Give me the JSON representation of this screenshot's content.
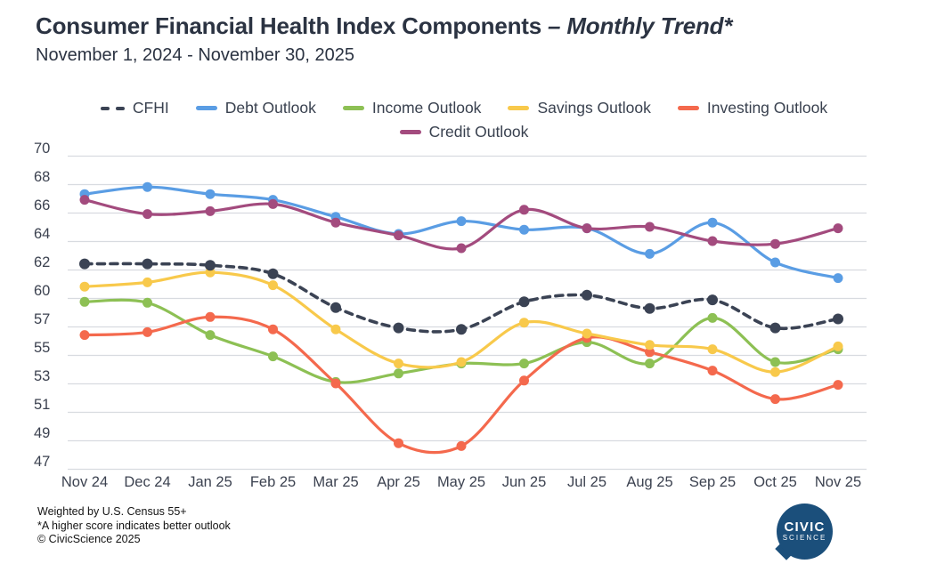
{
  "header": {
    "title_main": "Consumer Financial Health Index Components",
    "title_em": "– Monthly Trend*",
    "subtitle": "November 1, 2024 - November 30, 2025"
  },
  "legend": {
    "rows": [
      [
        "CFHI",
        "Debt Outlook",
        "Income Outlook",
        "Savings Outlook",
        "Investing Outlook"
      ],
      [
        "Credit Outlook"
      ]
    ]
  },
  "chart_data": {
    "type": "line",
    "title": "Consumer Financial Health Index Components – Monthly Trend*",
    "subtitle": "November 1, 2024 - November 30, 2025",
    "grid": "horizontal",
    "legend_position": "top-center",
    "x_categories": [
      "Nov 24",
      "Dec 24",
      "Jan 25",
      "Feb 25",
      "Mar 25",
      "Apr 25",
      "May 25",
      "Jun 25",
      "Jul 25",
      "Aug 25",
      "Sep 25",
      "Oct 25",
      "Nov 25"
    ],
    "y_tick_labels": [
      "70",
      "68",
      "66",
      "64",
      "62",
      "60",
      "57",
      "55",
      "53",
      "51",
      "49",
      "47"
    ],
    "y_axis_note": "ticks listed top to bottom, evenly spaced on screen despite non-uniform numeric steps",
    "series": [
      {
        "name": "CFHI",
        "color": "#3b4354",
        "style": "dashed",
        "values": [
          62.4,
          62.4,
          62.3,
          61.7,
          59.0,
          56.9,
          56.8,
          59.6,
          60.2,
          58.9,
          59.8,
          56.9,
          57.8
        ]
      },
      {
        "name": "Debt Outlook",
        "color": "#5a9de4",
        "style": "solid",
        "values": [
          67.3,
          67.8,
          67.3,
          66.9,
          65.7,
          64.5,
          65.4,
          64.8,
          64.9,
          63.1,
          65.3,
          62.5,
          61.4
        ]
      },
      {
        "name": "Income Outlook",
        "color": "#8dc054",
        "style": "solid",
        "values": [
          59.6,
          59.5,
          56.4,
          54.9,
          53.1,
          53.7,
          54.4,
          54.4,
          55.9,
          54.4,
          57.9,
          54.5,
          55.4
        ]
      },
      {
        "name": "Savings Outlook",
        "color": "#f8c94b",
        "style": "solid",
        "values": [
          60.8,
          61.1,
          61.8,
          60.9,
          56.8,
          54.4,
          54.5,
          57.4,
          56.5,
          55.7,
          55.4,
          53.8,
          55.6
        ]
      },
      {
        "name": "Investing Outlook",
        "color": "#f4694d",
        "style": "solid",
        "values": [
          56.4,
          56.6,
          58.0,
          56.8,
          53.0,
          48.8,
          48.6,
          53.2,
          56.2,
          55.2,
          53.9,
          51.9,
          52.9
        ]
      },
      {
        "name": "Credit Outlook",
        "color": "#a34b7e",
        "style": "solid",
        "values": [
          66.9,
          65.9,
          66.1,
          66.6,
          65.3,
          64.4,
          63.5,
          66.2,
          64.9,
          65.0,
          64.0,
          63.8,
          64.9
        ]
      }
    ],
    "colors": {
      "grid": "#d8dbe0",
      "axis_text": "#3c4250",
      "title_text": "#2b3342",
      "logo_blue": "#1b4f7b"
    }
  },
  "footnotes": [
    "Weighted by U.S. Census 55+",
    "*A higher score indicates better outlook",
    "© CivicScience 2025"
  ],
  "logo": {
    "line1": "CIVIC",
    "line2": "SCIENCE"
  }
}
